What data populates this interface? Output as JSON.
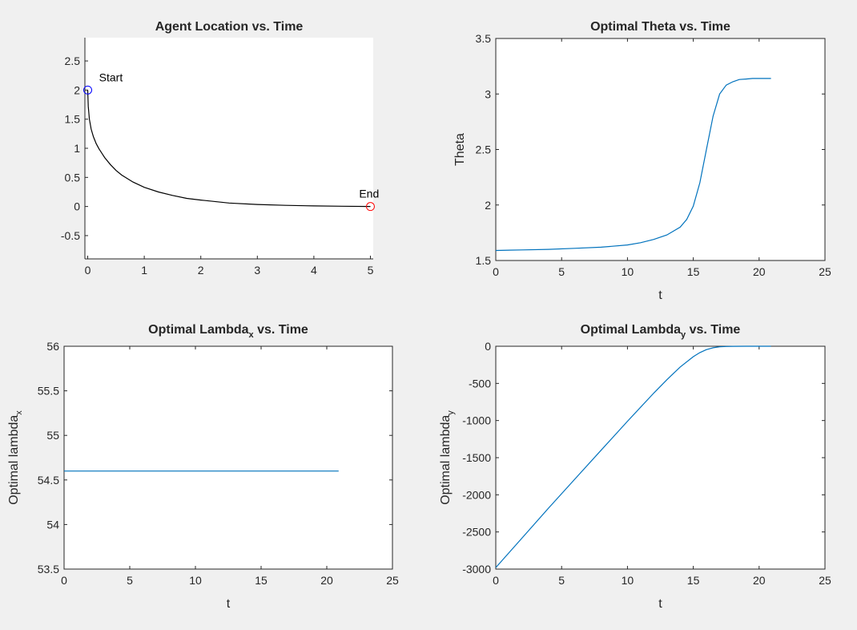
{
  "figure": {
    "background": "#f0f0f0"
  },
  "chart_data": [
    {
      "type": "line",
      "title": "Agent Location vs. Time",
      "xlabel": "",
      "ylabel": "",
      "xlim": [
        -0.05,
        5.05
      ],
      "ylim": [
        -0.9,
        2.9
      ],
      "xticks": [
        0,
        1,
        2,
        3,
        4,
        5
      ],
      "yticks": [
        -0.5,
        0,
        0.5,
        1,
        1.5,
        2,
        2.5
      ],
      "tick_labels_x": [
        "0",
        "1",
        "2",
        "3",
        "4",
        "5"
      ],
      "tick_labels_y": [
        "-0.5",
        "0",
        "0.5",
        "1",
        "1.5",
        "2",
        "2.5"
      ],
      "axis_box": "left-bottom",
      "series": [
        {
          "color": "#000000",
          "x": [
            0,
            0.01,
            0.03,
            0.06,
            0.1,
            0.15,
            0.2,
            0.3,
            0.4,
            0.5,
            0.6,
            0.8,
            1.0,
            1.25,
            1.5,
            1.75,
            2.0,
            2.5,
            3.0,
            3.5,
            4.0,
            4.5,
            5.0
          ],
          "y": [
            2.0,
            1.72,
            1.5,
            1.33,
            1.2,
            1.08,
            0.99,
            0.84,
            0.72,
            0.62,
            0.54,
            0.42,
            0.33,
            0.25,
            0.19,
            0.14,
            0.11,
            0.06,
            0.035,
            0.02,
            0.01,
            0.005,
            0.0
          ]
        }
      ],
      "markers": [
        {
          "x": 0,
          "y": 2,
          "color": "#0000ff"
        },
        {
          "x": 5,
          "y": 0,
          "color": "#ff0000"
        }
      ],
      "annotations": [
        {
          "text": "Start",
          "x": 0.2,
          "y": 2.15
        },
        {
          "text": "End",
          "x": 4.8,
          "y": 0.15
        }
      ]
    },
    {
      "type": "line",
      "title": "Optimal Theta vs. Time",
      "xlabel": "t",
      "ylabel": "Theta",
      "xlim": [
        0,
        25
      ],
      "ylim": [
        1.5,
        3.5
      ],
      "xticks": [
        0,
        5,
        10,
        15,
        20,
        25
      ],
      "yticks": [
        1.5,
        2,
        2.5,
        3,
        3.5
      ],
      "tick_labels_x": [
        "0",
        "5",
        "10",
        "15",
        "20",
        "25"
      ],
      "tick_labels_y": [
        "1.5",
        "2",
        "2.5",
        "3",
        "3.5"
      ],
      "axis_box": "full",
      "series": [
        {
          "color": "#0072bd",
          "x": [
            0,
            2,
            4,
            6,
            8,
            10,
            11,
            12,
            13,
            14,
            14.5,
            15,
            15.5,
            16,
            16.5,
            17,
            17.5,
            18,
            18.5,
            19,
            19.5,
            20,
            20.9
          ],
          "y": [
            1.59,
            1.595,
            1.6,
            1.61,
            1.62,
            1.64,
            1.66,
            1.69,
            1.73,
            1.8,
            1.87,
            1.99,
            2.2,
            2.5,
            2.8,
            3.0,
            3.08,
            3.11,
            3.13,
            3.135,
            3.14,
            3.14,
            3.14
          ]
        }
      ]
    },
    {
      "type": "line",
      "title": "Optimal Lambda",
      "title_sub": "x",
      "title_rest": " vs. Time",
      "xlabel": "t",
      "ylabel": "Optimal lambda",
      "ylabel_sub": "x",
      "xlim": [
        0,
        25
      ],
      "ylim": [
        53.5,
        56
      ],
      "xticks": [
        0,
        5,
        10,
        15,
        20,
        25
      ],
      "yticks": [
        53.5,
        54,
        54.5,
        55,
        55.5,
        56
      ],
      "tick_labels_x": [
        "0",
        "5",
        "10",
        "15",
        "20",
        "25"
      ],
      "tick_labels_y": [
        "53.5",
        "54",
        "54.5",
        "55",
        "55.5",
        "56"
      ],
      "axis_box": "full",
      "series": [
        {
          "color": "#0072bd",
          "x": [
            0,
            20.9
          ],
          "y": [
            54.6,
            54.6
          ]
        }
      ]
    },
    {
      "type": "line",
      "title": "Optimal Lambda",
      "title_sub": "y",
      "title_rest": " vs. Time",
      "xlabel": "t",
      "ylabel": "Optimal lambda",
      "ylabel_sub": "y",
      "xlim": [
        0,
        25
      ],
      "ylim": [
        -3000,
        0
      ],
      "xticks": [
        0,
        5,
        10,
        15,
        20,
        25
      ],
      "yticks": [
        -3000,
        -2500,
        -2000,
        -1500,
        -1000,
        -500,
        0
      ],
      "tick_labels_x": [
        "0",
        "5",
        "10",
        "15",
        "20",
        "25"
      ],
      "tick_labels_y": [
        "-3000",
        "-2500",
        "-2000",
        "-1500",
        "-1000",
        "-500",
        "0"
      ],
      "axis_box": "full",
      "series": [
        {
          "color": "#0072bd",
          "x": [
            0,
            2,
            4,
            6,
            8,
            10,
            12,
            13,
            14,
            15,
            15.5,
            16,
            16.5,
            17,
            17.5,
            18,
            19,
            20,
            20.9
          ],
          "y": [
            -2980,
            -2580,
            -2180,
            -1790,
            -1400,
            -1010,
            -630,
            -450,
            -280,
            -140,
            -85,
            -45,
            -20,
            -8,
            -3,
            -1,
            0,
            0,
            0
          ]
        }
      ]
    }
  ]
}
